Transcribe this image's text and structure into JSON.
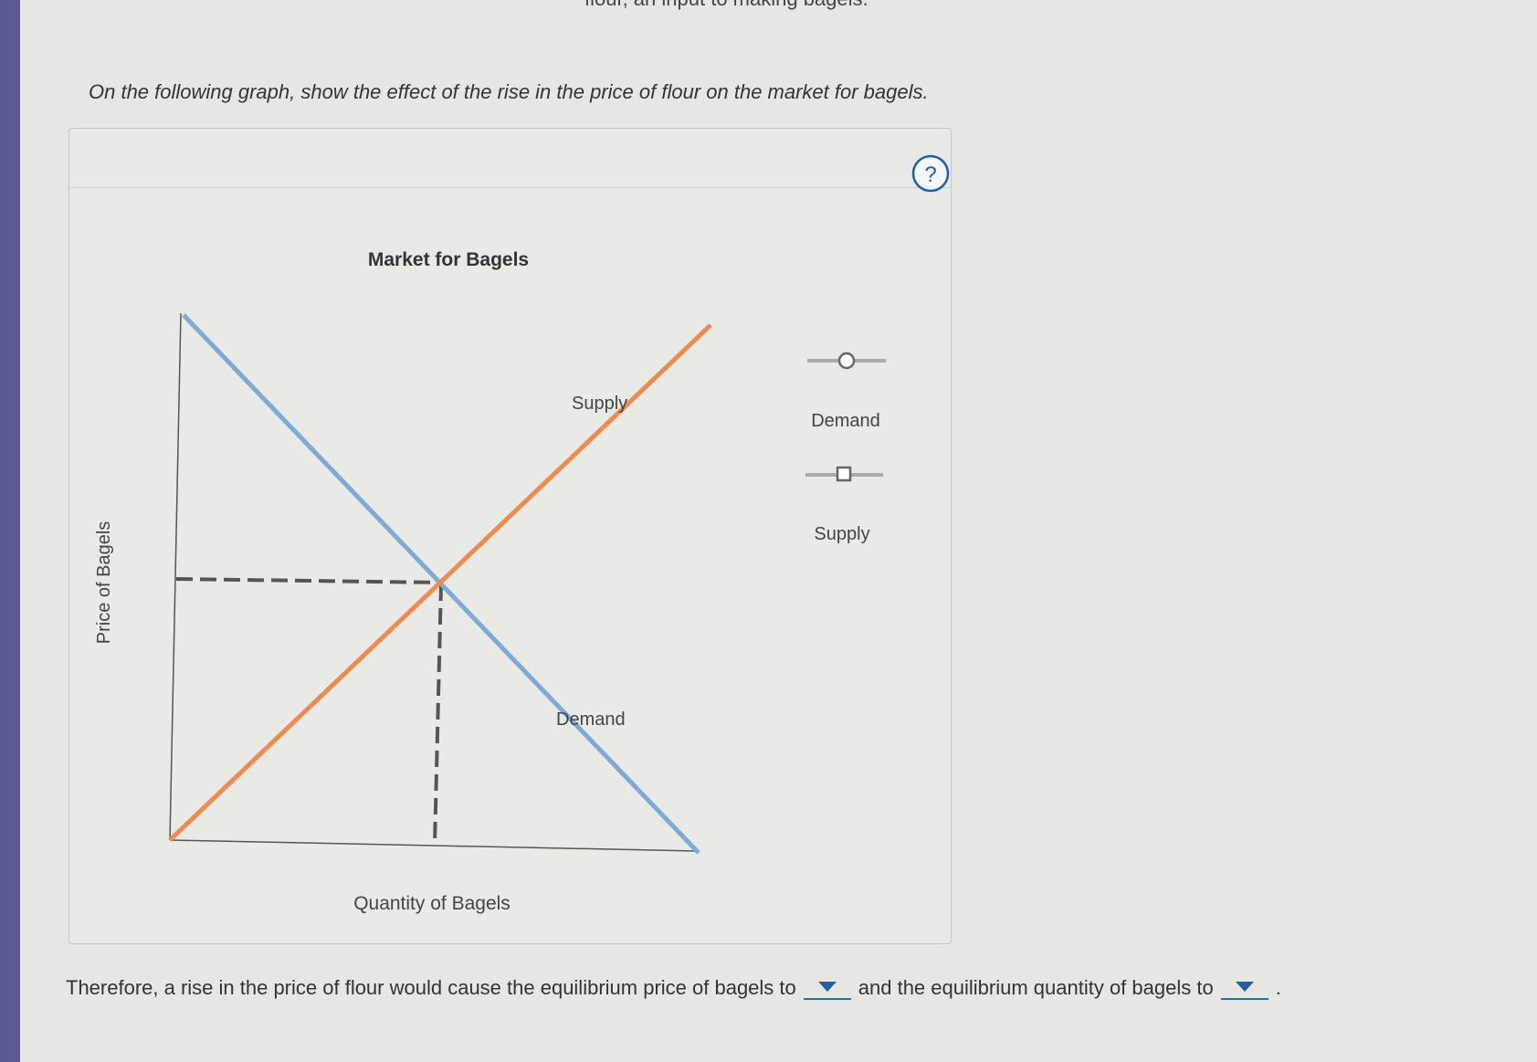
{
  "header_fragment": "flour, an input to making bagels.",
  "instruction": "On the following graph, show the effect of the rise in the price of flour on the market for bagels.",
  "graph": {
    "title": "Market for Bagels",
    "y_axis_label": "Price of Bagels",
    "x_axis_label": "Quantity of Bagels",
    "supply_curve_label": "Supply",
    "demand_curve_label": "Demand",
    "help": "?",
    "legend": [
      {
        "label": "Demand"
      },
      {
        "label": "Supply"
      }
    ]
  },
  "question": {
    "part1": "Therefore, a rise in the price of flour would cause the equilibrium price of bagels to",
    "part2": "and the equilibrium quantity of bagels to",
    "end": "."
  }
}
